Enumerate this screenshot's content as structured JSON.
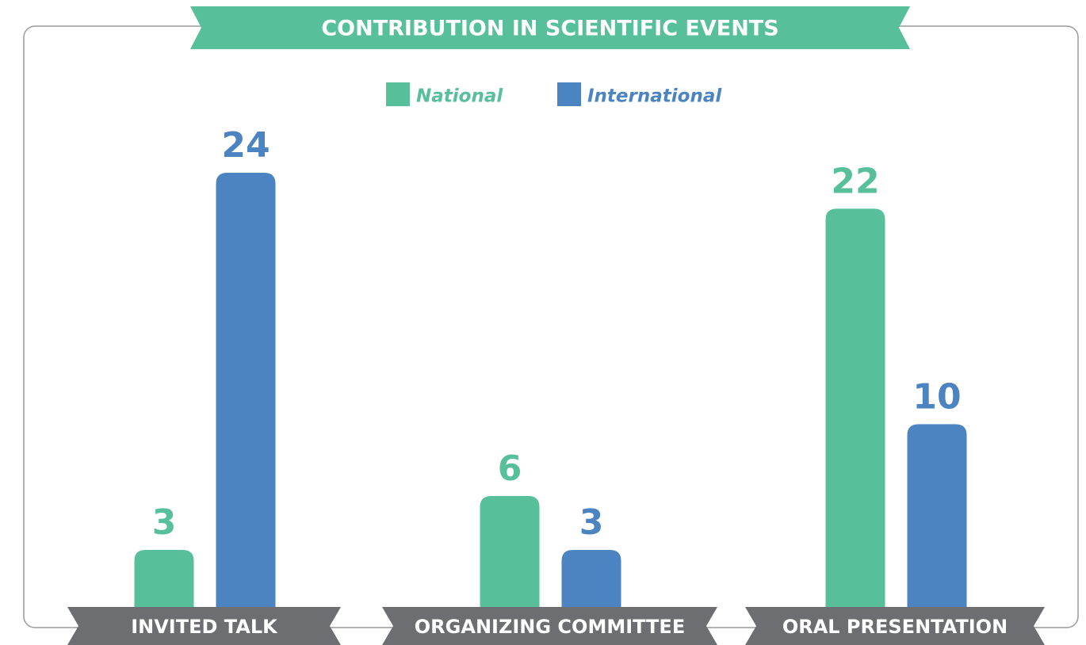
{
  "chart_data": {
    "type": "bar",
    "title": "CONTRIBUTION IN SCIENTIFIC EVENTS",
    "categories": [
      "INVITED TALK",
      "ORGANIZING COMMITTEE",
      "ORAL PRESENTATION"
    ],
    "series": [
      {
        "name": "National",
        "color": "#57c09b",
        "values": [
          3,
          6,
          22
        ]
      },
      {
        "name": "International",
        "color": "#4c84c1",
        "values": [
          24,
          3,
          10
        ]
      }
    ]
  }
}
